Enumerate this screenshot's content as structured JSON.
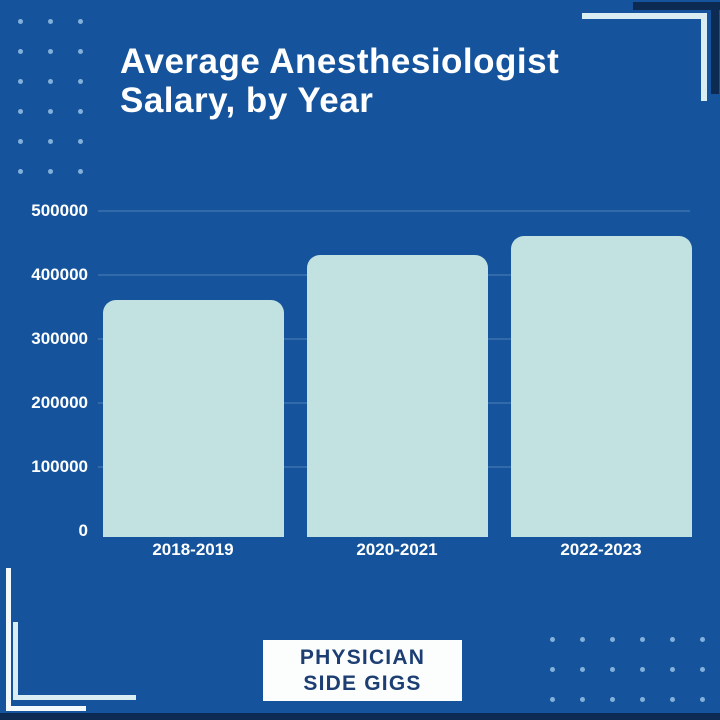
{
  "title": {
    "line1": "Average Anesthesiologist",
    "line2": "Salary, by Year"
  },
  "chart_data": {
    "type": "bar",
    "title": "Average Anesthesiologist Salary, by Year",
    "categories": [
      "2018-2019",
      "2020-2021",
      "2022-2023"
    ],
    "values": [
      365000,
      435000,
      465000
    ],
    "xlabel": "",
    "ylabel": "",
    "ylim": [
      0,
      500000
    ],
    "ytick_step": 100000,
    "ytick_labels": [
      "0",
      "100000",
      "200000",
      "300000",
      "400000",
      "500000"
    ],
    "grid": true,
    "legend": "none",
    "bar_color": "#c2e1e1",
    "background_color": "#15549d"
  },
  "badge": {
    "line1": "PHYSICIAN",
    "line2": "SIDE GIGS"
  },
  "colors": {
    "background": "#15549d",
    "bar_fill": "#c2e1e1",
    "dark_navy": "#0d2b52",
    "text_white": "#ffffff",
    "badge_text": "#1c3e73",
    "dot_light_blue": "#a0c8eb",
    "bracket_light": "#d9edf2",
    "bracket_white": "#f4fafb"
  }
}
